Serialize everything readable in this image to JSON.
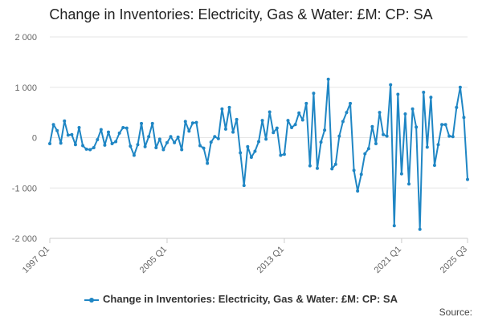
{
  "title": "Change in Inventories: Electricity, Gas & Water: £M: CP: SA",
  "legend_label": "Change in Inventories: Electricity, Gas & Water: £M: CP: SA",
  "source_label": "Source:",
  "colors": {
    "series": "#1f86c4",
    "grid": "#e6e6e6",
    "axis": "#cccccc",
    "text": "#222222"
  },
  "chart_data": {
    "type": "line",
    "title": "Change in Inventories: Electricity, Gas & Water: £M: CP: SA",
    "xlabel": "",
    "ylabel": "",
    "ylim": [
      -2000,
      2000
    ],
    "y_ticks": [
      2000,
      1000,
      0,
      -1000,
      -2000
    ],
    "y_tick_labels": [
      "2 000",
      "1 000",
      "0",
      "-1 000",
      "-2 000"
    ],
    "x_ticks": [
      "1997 Q1",
      "2005 Q1",
      "2013 Q1",
      "2021 Q1",
      "2025 Q3"
    ],
    "grid": "horizontal",
    "legend_position": "bottom",
    "series": [
      {
        "name": "Change in Inventories: Electricity, Gas & Water: £M: CP: SA",
        "x": [
          "1997 Q1",
          "1997 Q2",
          "1997 Q3",
          "1997 Q4",
          "1998 Q1",
          "1998 Q2",
          "1998 Q3",
          "1998 Q4",
          "1999 Q1",
          "1999 Q2",
          "1999 Q3",
          "1999 Q4",
          "2000 Q1",
          "2000 Q2",
          "2000 Q3",
          "2000 Q4",
          "2001 Q1",
          "2001 Q2",
          "2001 Q3",
          "2001 Q4",
          "2002 Q1",
          "2002 Q2",
          "2002 Q3",
          "2002 Q4",
          "2003 Q1",
          "2003 Q2",
          "2003 Q3",
          "2003 Q4",
          "2004 Q1",
          "2004 Q2",
          "2004 Q3",
          "2004 Q4",
          "2005 Q1",
          "2005 Q2",
          "2005 Q3",
          "2005 Q4",
          "2006 Q1",
          "2006 Q2",
          "2006 Q3",
          "2006 Q4",
          "2007 Q1",
          "2007 Q2",
          "2007 Q3",
          "2007 Q4",
          "2008 Q1",
          "2008 Q2",
          "2008 Q3",
          "2008 Q4",
          "2009 Q1",
          "2009 Q2",
          "2009 Q3",
          "2009 Q4",
          "2010 Q1",
          "2010 Q2",
          "2010 Q3",
          "2010 Q4",
          "2011 Q1",
          "2011 Q2",
          "2011 Q3",
          "2011 Q4",
          "2012 Q1",
          "2012 Q2",
          "2012 Q3",
          "2012 Q4",
          "2013 Q1",
          "2013 Q2",
          "2013 Q3",
          "2013 Q4",
          "2014 Q1",
          "2014 Q2",
          "2014 Q3",
          "2014 Q4",
          "2015 Q1",
          "2015 Q2",
          "2015 Q3",
          "2015 Q4",
          "2016 Q1",
          "2016 Q2",
          "2016 Q3",
          "2016 Q4",
          "2017 Q1",
          "2017 Q2",
          "2017 Q3",
          "2017 Q4",
          "2018 Q1",
          "2018 Q2",
          "2018 Q3",
          "2018 Q4",
          "2019 Q1",
          "2019 Q2",
          "2019 Q3",
          "2019 Q4",
          "2020 Q1",
          "2020 Q2",
          "2020 Q3",
          "2020 Q4",
          "2021 Q1",
          "2021 Q2",
          "2021 Q3",
          "2021 Q4",
          "2022 Q1",
          "2022 Q2",
          "2022 Q3",
          "2022 Q4",
          "2023 Q1",
          "2023 Q2",
          "2023 Q3",
          "2023 Q4",
          "2024 Q1",
          "2024 Q2",
          "2024 Q3",
          "2024 Q4",
          "2025 Q1",
          "2025 Q2",
          "2025 Q3"
        ],
        "values": [
          -120,
          260,
          140,
          -110,
          330,
          50,
          60,
          -140,
          200,
          -160,
          -230,
          -240,
          -200,
          -40,
          160,
          -150,
          110,
          -120,
          -80,
          90,
          200,
          190,
          -170,
          -350,
          -140,
          280,
          -180,
          20,
          280,
          -200,
          -30,
          -240,
          -100,
          20,
          -100,
          10,
          -240,
          320,
          130,
          290,
          300,
          -160,
          -210,
          -510,
          -90,
          20,
          -20,
          570,
          170,
          600,
          110,
          360,
          -300,
          -950,
          -180,
          -390,
          -270,
          -80,
          340,
          -30,
          510,
          100,
          190,
          -350,
          -330,
          340,
          200,
          260,
          490,
          350,
          680,
          -560,
          880,
          -610,
          -90,
          150,
          1160,
          -620,
          -530,
          30,
          320,
          500,
          680,
          -650,
          -1060,
          -730,
          -320,
          -220,
          220,
          -120,
          500,
          60,
          30,
          1050,
          -1750,
          860,
          -720,
          470,
          -920,
          570,
          210,
          -1820,
          900,
          -190,
          800,
          -550,
          -140,
          260,
          260,
          30,
          20,
          600,
          1000,
          400,
          -830
        ]
      }
    ]
  }
}
